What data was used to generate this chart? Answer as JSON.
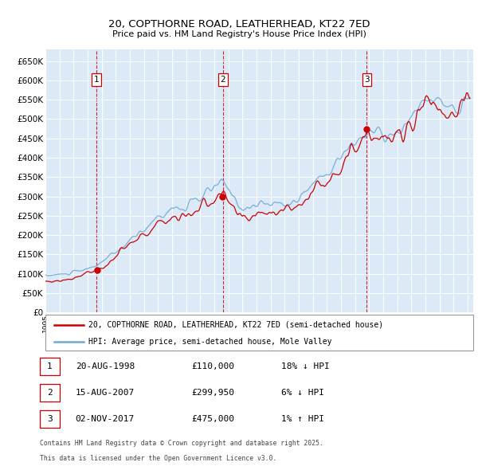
{
  "title": "20, COPTHORNE ROAD, LEATHERHEAD, KT22 7ED",
  "subtitle": "Price paid vs. HM Land Registry's House Price Index (HPI)",
  "plot_bg_color": "#dce9f7",
  "ylim": [
    0,
    680000
  ],
  "yticks": [
    0,
    50000,
    100000,
    150000,
    200000,
    250000,
    300000,
    350000,
    400000,
    450000,
    500000,
    550000,
    600000,
    650000
  ],
  "transactions": [
    {
      "label": "1",
      "date": "20-AUG-1998",
      "price": 110000,
      "hpi_pct": "18%",
      "hpi_dir": "↓"
    },
    {
      "label": "2",
      "date": "15-AUG-2007",
      "price": 299950,
      "hpi_pct": "6%",
      "hpi_dir": "↓"
    },
    {
      "label": "3",
      "date": "02-NOV-2017",
      "price": 475000,
      "hpi_pct": "1%",
      "hpi_dir": "↑"
    }
  ],
  "transaction_years": [
    1998.63,
    2007.62,
    2017.84
  ],
  "transaction_prices": [
    110000,
    299950,
    475000
  ],
  "legend_line1": "20, COPTHORNE ROAD, LEATHERHEAD, KT22 7ED (semi-detached house)",
  "legend_line2": "HPI: Average price, semi-detached house, Mole Valley",
  "footer_line1": "Contains HM Land Registry data © Crown copyright and database right 2025.",
  "footer_line2": "This data is licensed under the Open Government Licence v3.0.",
  "line_color_red": "#cc0000",
  "line_color_blue": "#6fa8d4",
  "grid_color": "#ffffff",
  "vline_color": "#cc0000",
  "dot_color": "#cc0000"
}
